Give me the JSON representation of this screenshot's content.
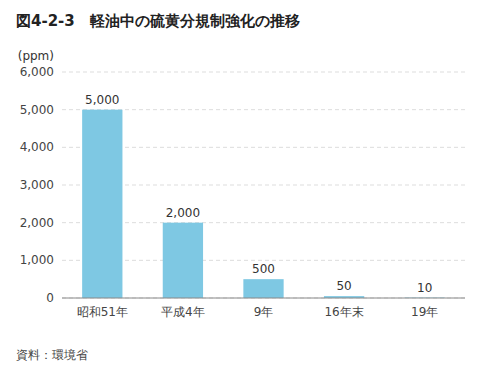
{
  "chart_data": {
    "type": "bar",
    "title": "図4-2-3　軽油中の硫黄分規制強化の推移",
    "ylabel": "(ppm)",
    "categories": [
      "昭和51年",
      "平成4年",
      "9年",
      "16年末",
      "19年"
    ],
    "values": [
      5000,
      2000,
      500,
      50,
      10
    ],
    "value_labels": [
      "5,000",
      "2,000",
      "500",
      "50",
      "10"
    ],
    "color": "#7ec8e3",
    "ylim": [
      0,
      6000
    ],
    "yticks": [
      0,
      {
        "value": 1000,
        "label": "1,000"
      },
      {
        "value": 2000,
        "label": "2,000"
      },
      {
        "value": 3000,
        "label": "3,000"
      },
      {
        "value": 4000,
        "label": "4,000"
      },
      {
        "value": 5000,
        "label": "5,000"
      },
      {
        "value": 6000,
        "label": "6,000"
      }
    ],
    "grid": true,
    "data_labels": true,
    "annotations": [
      "資料：環境省"
    ]
  }
}
